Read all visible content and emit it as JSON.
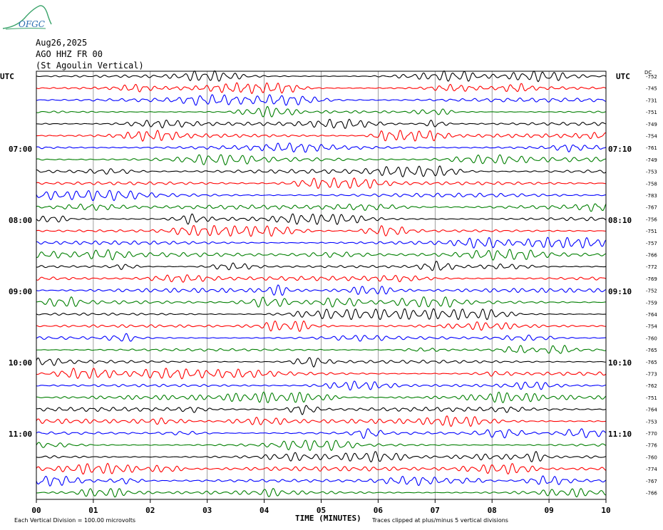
{
  "logo": {
    "text": "OFGC"
  },
  "header": {
    "date": "Aug26,2025",
    "station": "AGO HHZ FR 00",
    "name": "(St Agoulin Vertical)"
  },
  "left_axis_title": "UTC",
  "right_axis_title": "UTC",
  "dc_title": "DC",
  "hour_labels_left": [
    "07:00",
    "08:00",
    "09:00",
    "10:00",
    "11:00"
  ],
  "hour_labels_right": [
    "07:10",
    "08:10",
    "09:10",
    "10:10",
    "11:10"
  ],
  "footer": {
    "xlabel": "TIME (MINUTES)",
    "scale_note": "Each Vertical Division =  100.00 microvolts",
    "clip_note": "Traces clipped at plus/minus 5 vertical divisions"
  },
  "colors": {
    "black": "#000000",
    "red": "#ff0000",
    "blue": "#0000ff",
    "green": "#007f00",
    "grid": "#777777"
  },
  "chart_data": {
    "type": "line",
    "title": "AGO HHZ FR 00 (St Agoulin Vertical)",
    "xlabel": "TIME (MINUTES)",
    "ylabel": "UTC",
    "xlim": [
      0,
      10
    ],
    "x_ticks": [
      "00",
      "01",
      "02",
      "03",
      "04",
      "05",
      "06",
      "07",
      "08",
      "09",
      "10"
    ],
    "trace_count": 36,
    "trace_minutes": 10,
    "color_cycle": [
      "black",
      "red",
      "blue",
      "green"
    ],
    "dc_offsets": [
      -752,
      -745,
      -731,
      -751,
      -749,
      -754,
      -761,
      -749,
      -753,
      -758,
      -783,
      -767,
      -756,
      -751,
      -757,
      -766,
      -772,
      -769,
      -752,
      -759,
      -764,
      -754,
      -760,
      -765,
      -765,
      -773,
      -762,
      -751,
      -764,
      -753,
      -770,
      -776,
      -760,
      -774,
      -767,
      -766
    ],
    "grid": true
  }
}
